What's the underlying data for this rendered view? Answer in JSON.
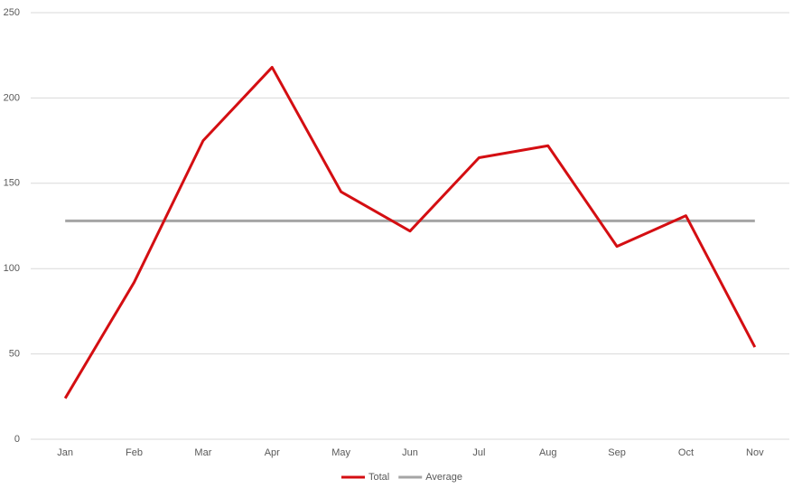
{
  "chart_data": {
    "type": "line",
    "categories": [
      "Jan",
      "Feb",
      "Mar",
      "Apr",
      "May",
      "Jun",
      "Jul",
      "Aug",
      "Sep",
      "Oct",
      "Nov"
    ],
    "series": [
      {
        "name": "Total",
        "color": "#d40e12",
        "values": [
          24,
          92,
          175,
          218,
          145,
          122,
          165,
          172,
          113,
          131,
          54
        ]
      },
      {
        "name": "Average",
        "color": "#a5a5a5",
        "values": [
          128,
          128,
          128,
          128,
          128,
          128,
          128,
          128,
          128,
          128,
          128
        ]
      }
    ],
    "ylim": [
      0,
      250
    ],
    "yticks": [
      0,
      50,
      100,
      150,
      200,
      250
    ],
    "grid": true,
    "legend": "bottom"
  }
}
